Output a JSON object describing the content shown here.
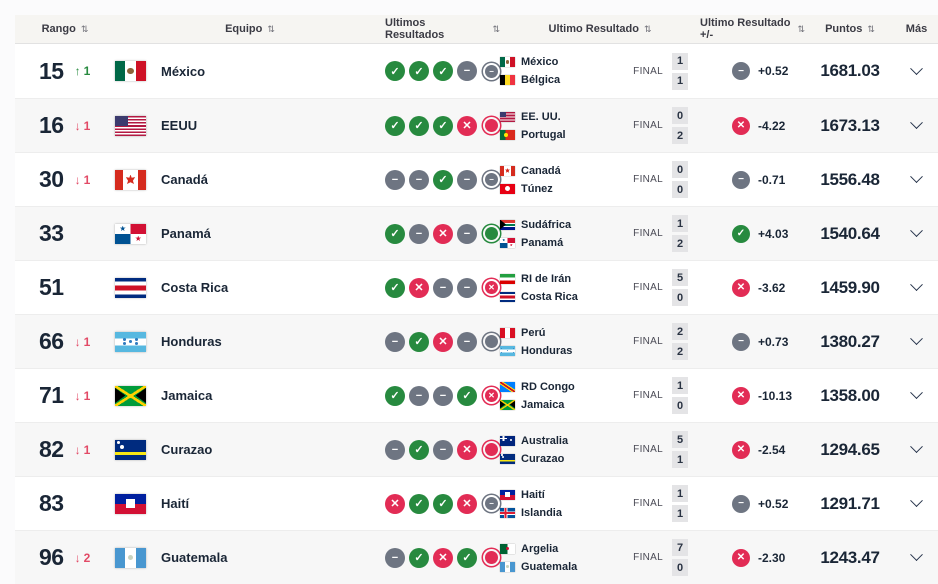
{
  "icons": {
    "sort": "⇅"
  },
  "colors": {
    "win": "#278a3f",
    "draw": "#6e7582",
    "loss": "#e22c55",
    "rank_up": "#278a3f",
    "rank_down": "#e24a66",
    "text_dark": "#1a2636",
    "header_bg": "#f6f5f2",
    "row_alt_bg": "#f7f7f7"
  },
  "table": {
    "columns": [
      {
        "label": "Rango",
        "sortable": true
      },
      {
        "label": "Equipo",
        "sortable": true
      },
      {
        "label": "Ultimos Resultados",
        "sortable": true
      },
      {
        "label": "Ultimo Resultado",
        "sortable": true
      },
      {
        "label": "Ultimo Resultado +/-",
        "sortable": true
      },
      {
        "label": "Puntos",
        "sortable": true
      },
      {
        "label": "Más",
        "sortable": false
      }
    ],
    "rows": [
      {
        "rank": "15",
        "movement": {
          "dir": "up",
          "arrow": "↑",
          "value": "1"
        },
        "team": {
          "name": "México",
          "flag": "mx"
        },
        "last_results": [
          {
            "type": "win",
            "glyph": "✓",
            "recent": false
          },
          {
            "type": "win",
            "glyph": "✓",
            "recent": false
          },
          {
            "type": "win",
            "glyph": "✓",
            "recent": false
          },
          {
            "type": "draw",
            "glyph": "−",
            "recent": false
          },
          {
            "type": "draw",
            "glyph": "−",
            "recent": true
          }
        ],
        "last_match": {
          "home": {
            "name": "México",
            "flag": "mx"
          },
          "away": {
            "name": "Bélgica",
            "flag": "be"
          },
          "status": "FINAL",
          "home_score": "1",
          "away_score": "1"
        },
        "delta": {
          "type": "draw",
          "glyph": "−",
          "value": "+0.52"
        },
        "points": "1681.03"
      },
      {
        "rank": "16",
        "movement": {
          "dir": "down",
          "arrow": "↓",
          "value": "1"
        },
        "team": {
          "name": "EEUU",
          "flag": "us"
        },
        "last_results": [
          {
            "type": "win",
            "glyph": "✓",
            "recent": false
          },
          {
            "type": "win",
            "glyph": "✓",
            "recent": false
          },
          {
            "type": "win",
            "glyph": "✓",
            "recent": false
          },
          {
            "type": "loss",
            "glyph": "✕",
            "recent": false
          },
          {
            "type": "loss",
            "glyph": "✕",
            "recent": true
          }
        ],
        "last_match": {
          "home": {
            "name": "EE. UU.",
            "flag": "us"
          },
          "away": {
            "name": "Portugal",
            "flag": "pt"
          },
          "status": "FINAL",
          "home_score": "0",
          "away_score": "2"
        },
        "delta": {
          "type": "loss",
          "glyph": "✕",
          "value": "-4.22"
        },
        "points": "1673.13"
      },
      {
        "rank": "30",
        "movement": {
          "dir": "down",
          "arrow": "↓",
          "value": "1"
        },
        "team": {
          "name": "Canadá",
          "flag": "ca"
        },
        "last_results": [
          {
            "type": "draw",
            "glyph": "−",
            "recent": false
          },
          {
            "type": "draw",
            "glyph": "−",
            "recent": false
          },
          {
            "type": "win",
            "glyph": "✓",
            "recent": false
          },
          {
            "type": "draw",
            "glyph": "−",
            "recent": false
          },
          {
            "type": "draw",
            "glyph": "−",
            "recent": true
          }
        ],
        "last_match": {
          "home": {
            "name": "Canadá",
            "flag": "ca"
          },
          "away": {
            "name": "Túnez",
            "flag": "tn"
          },
          "status": "FINAL",
          "home_score": "0",
          "away_score": "0"
        },
        "delta": {
          "type": "draw",
          "glyph": "−",
          "value": "-0.71"
        },
        "points": "1556.48"
      },
      {
        "rank": "33",
        "movement": {
          "dir": "none",
          "arrow": "",
          "value": ""
        },
        "team": {
          "name": "Panamá",
          "flag": "pa"
        },
        "last_results": [
          {
            "type": "win",
            "glyph": "✓",
            "recent": false
          },
          {
            "type": "draw",
            "glyph": "−",
            "recent": false
          },
          {
            "type": "loss",
            "glyph": "✕",
            "recent": false
          },
          {
            "type": "draw",
            "glyph": "−",
            "recent": false
          },
          {
            "type": "win",
            "glyph": "✓",
            "recent": true
          }
        ],
        "last_match": {
          "home": {
            "name": "Sudáfrica",
            "flag": "za"
          },
          "away": {
            "name": "Panamá",
            "flag": "pa"
          },
          "status": "FINAL",
          "home_score": "1",
          "away_score": "2"
        },
        "delta": {
          "type": "win",
          "glyph": "✓",
          "value": "+4.03"
        },
        "points": "1540.64"
      },
      {
        "rank": "51",
        "movement": {
          "dir": "none",
          "arrow": "",
          "value": ""
        },
        "team": {
          "name": "Costa Rica",
          "flag": "cr"
        },
        "last_results": [
          {
            "type": "win",
            "glyph": "✓",
            "recent": false
          },
          {
            "type": "loss",
            "glyph": "✕",
            "recent": false
          },
          {
            "type": "draw",
            "glyph": "−",
            "recent": false
          },
          {
            "type": "draw",
            "glyph": "−",
            "recent": false
          },
          {
            "type": "loss",
            "glyph": "✕",
            "recent": true
          }
        ],
        "last_match": {
          "home": {
            "name": "RI de Irán",
            "flag": "ir"
          },
          "away": {
            "name": "Costa Rica",
            "flag": "cr"
          },
          "status": "FINAL",
          "home_score": "5",
          "away_score": "0"
        },
        "delta": {
          "type": "loss",
          "glyph": "✕",
          "value": "-3.62"
        },
        "points": "1459.90"
      },
      {
        "rank": "66",
        "movement": {
          "dir": "down",
          "arrow": "↓",
          "value": "1"
        },
        "team": {
          "name": "Honduras",
          "flag": "hn"
        },
        "last_results": [
          {
            "type": "draw",
            "glyph": "−",
            "recent": false
          },
          {
            "type": "win",
            "glyph": "✓",
            "recent": false
          },
          {
            "type": "loss",
            "glyph": "✕",
            "recent": false
          },
          {
            "type": "draw",
            "glyph": "−",
            "recent": false
          },
          {
            "type": "draw",
            "glyph": "−",
            "recent": true
          }
        ],
        "last_match": {
          "home": {
            "name": "Perú",
            "flag": "pe"
          },
          "away": {
            "name": "Honduras",
            "flag": "hn"
          },
          "status": "FINAL",
          "home_score": "2",
          "away_score": "2"
        },
        "delta": {
          "type": "draw",
          "glyph": "−",
          "value": "+0.73"
        },
        "points": "1380.27"
      },
      {
        "rank": "71",
        "movement": {
          "dir": "down",
          "arrow": "↓",
          "value": "1"
        },
        "team": {
          "name": "Jamaica",
          "flag": "jm"
        },
        "last_results": [
          {
            "type": "win",
            "glyph": "✓",
            "recent": false
          },
          {
            "type": "draw",
            "glyph": "−",
            "recent": false
          },
          {
            "type": "draw",
            "glyph": "−",
            "recent": false
          },
          {
            "type": "win",
            "glyph": "✓",
            "recent": false
          },
          {
            "type": "loss",
            "glyph": "✕",
            "recent": true
          }
        ],
        "last_match": {
          "home": {
            "name": "RD Congo",
            "flag": "cd"
          },
          "away": {
            "name": "Jamaica",
            "flag": "jm"
          },
          "status": "FINAL",
          "home_score": "1",
          "away_score": "0"
        },
        "delta": {
          "type": "loss",
          "glyph": "✕",
          "value": "-10.13"
        },
        "points": "1358.00"
      },
      {
        "rank": "82",
        "movement": {
          "dir": "down",
          "arrow": "↓",
          "value": "1"
        },
        "team": {
          "name": "Curazao",
          "flag": "cw"
        },
        "last_results": [
          {
            "type": "draw",
            "glyph": "−",
            "recent": false
          },
          {
            "type": "win",
            "glyph": "✓",
            "recent": false
          },
          {
            "type": "draw",
            "glyph": "−",
            "recent": false
          },
          {
            "type": "loss",
            "glyph": "✕",
            "recent": false
          },
          {
            "type": "loss",
            "glyph": "✕",
            "recent": true
          }
        ],
        "last_match": {
          "home": {
            "name": "Australia",
            "flag": "au"
          },
          "away": {
            "name": "Curazao",
            "flag": "cw"
          },
          "status": "FINAL",
          "home_score": "5",
          "away_score": "1"
        },
        "delta": {
          "type": "loss",
          "glyph": "✕",
          "value": "-2.54"
        },
        "points": "1294.65"
      },
      {
        "rank": "83",
        "movement": {
          "dir": "none",
          "arrow": "",
          "value": ""
        },
        "team": {
          "name": "Haití",
          "flag": "ht"
        },
        "last_results": [
          {
            "type": "loss",
            "glyph": "✕",
            "recent": false
          },
          {
            "type": "win",
            "glyph": "✓",
            "recent": false
          },
          {
            "type": "win",
            "glyph": "✓",
            "recent": false
          },
          {
            "type": "loss",
            "glyph": "✕",
            "recent": false
          },
          {
            "type": "draw",
            "glyph": "−",
            "recent": true
          }
        ],
        "last_match": {
          "home": {
            "name": "Haití",
            "flag": "ht"
          },
          "away": {
            "name": "Islandia",
            "flag": "is"
          },
          "status": "FINAL",
          "home_score": "1",
          "away_score": "1"
        },
        "delta": {
          "type": "draw",
          "glyph": "−",
          "value": "+0.52"
        },
        "points": "1291.71"
      },
      {
        "rank": "96",
        "movement": {
          "dir": "down",
          "arrow": "↓",
          "value": "2"
        },
        "team": {
          "name": "Guatemala",
          "flag": "gt"
        },
        "last_results": [
          {
            "type": "draw",
            "glyph": "−",
            "recent": false
          },
          {
            "type": "win",
            "glyph": "✓",
            "recent": false
          },
          {
            "type": "loss",
            "glyph": "✕",
            "recent": false
          },
          {
            "type": "win",
            "glyph": "✓",
            "recent": false
          },
          {
            "type": "loss",
            "glyph": "✕",
            "recent": true
          }
        ],
        "last_match": {
          "home": {
            "name": "Argelia",
            "flag": "dz"
          },
          "away": {
            "name": "Guatemala",
            "flag": "gt"
          },
          "status": "FINAL",
          "home_score": "7",
          "away_score": "0"
        },
        "delta": {
          "type": "loss",
          "glyph": "✕",
          "value": "-2.30"
        },
        "points": "1243.47"
      }
    ]
  }
}
